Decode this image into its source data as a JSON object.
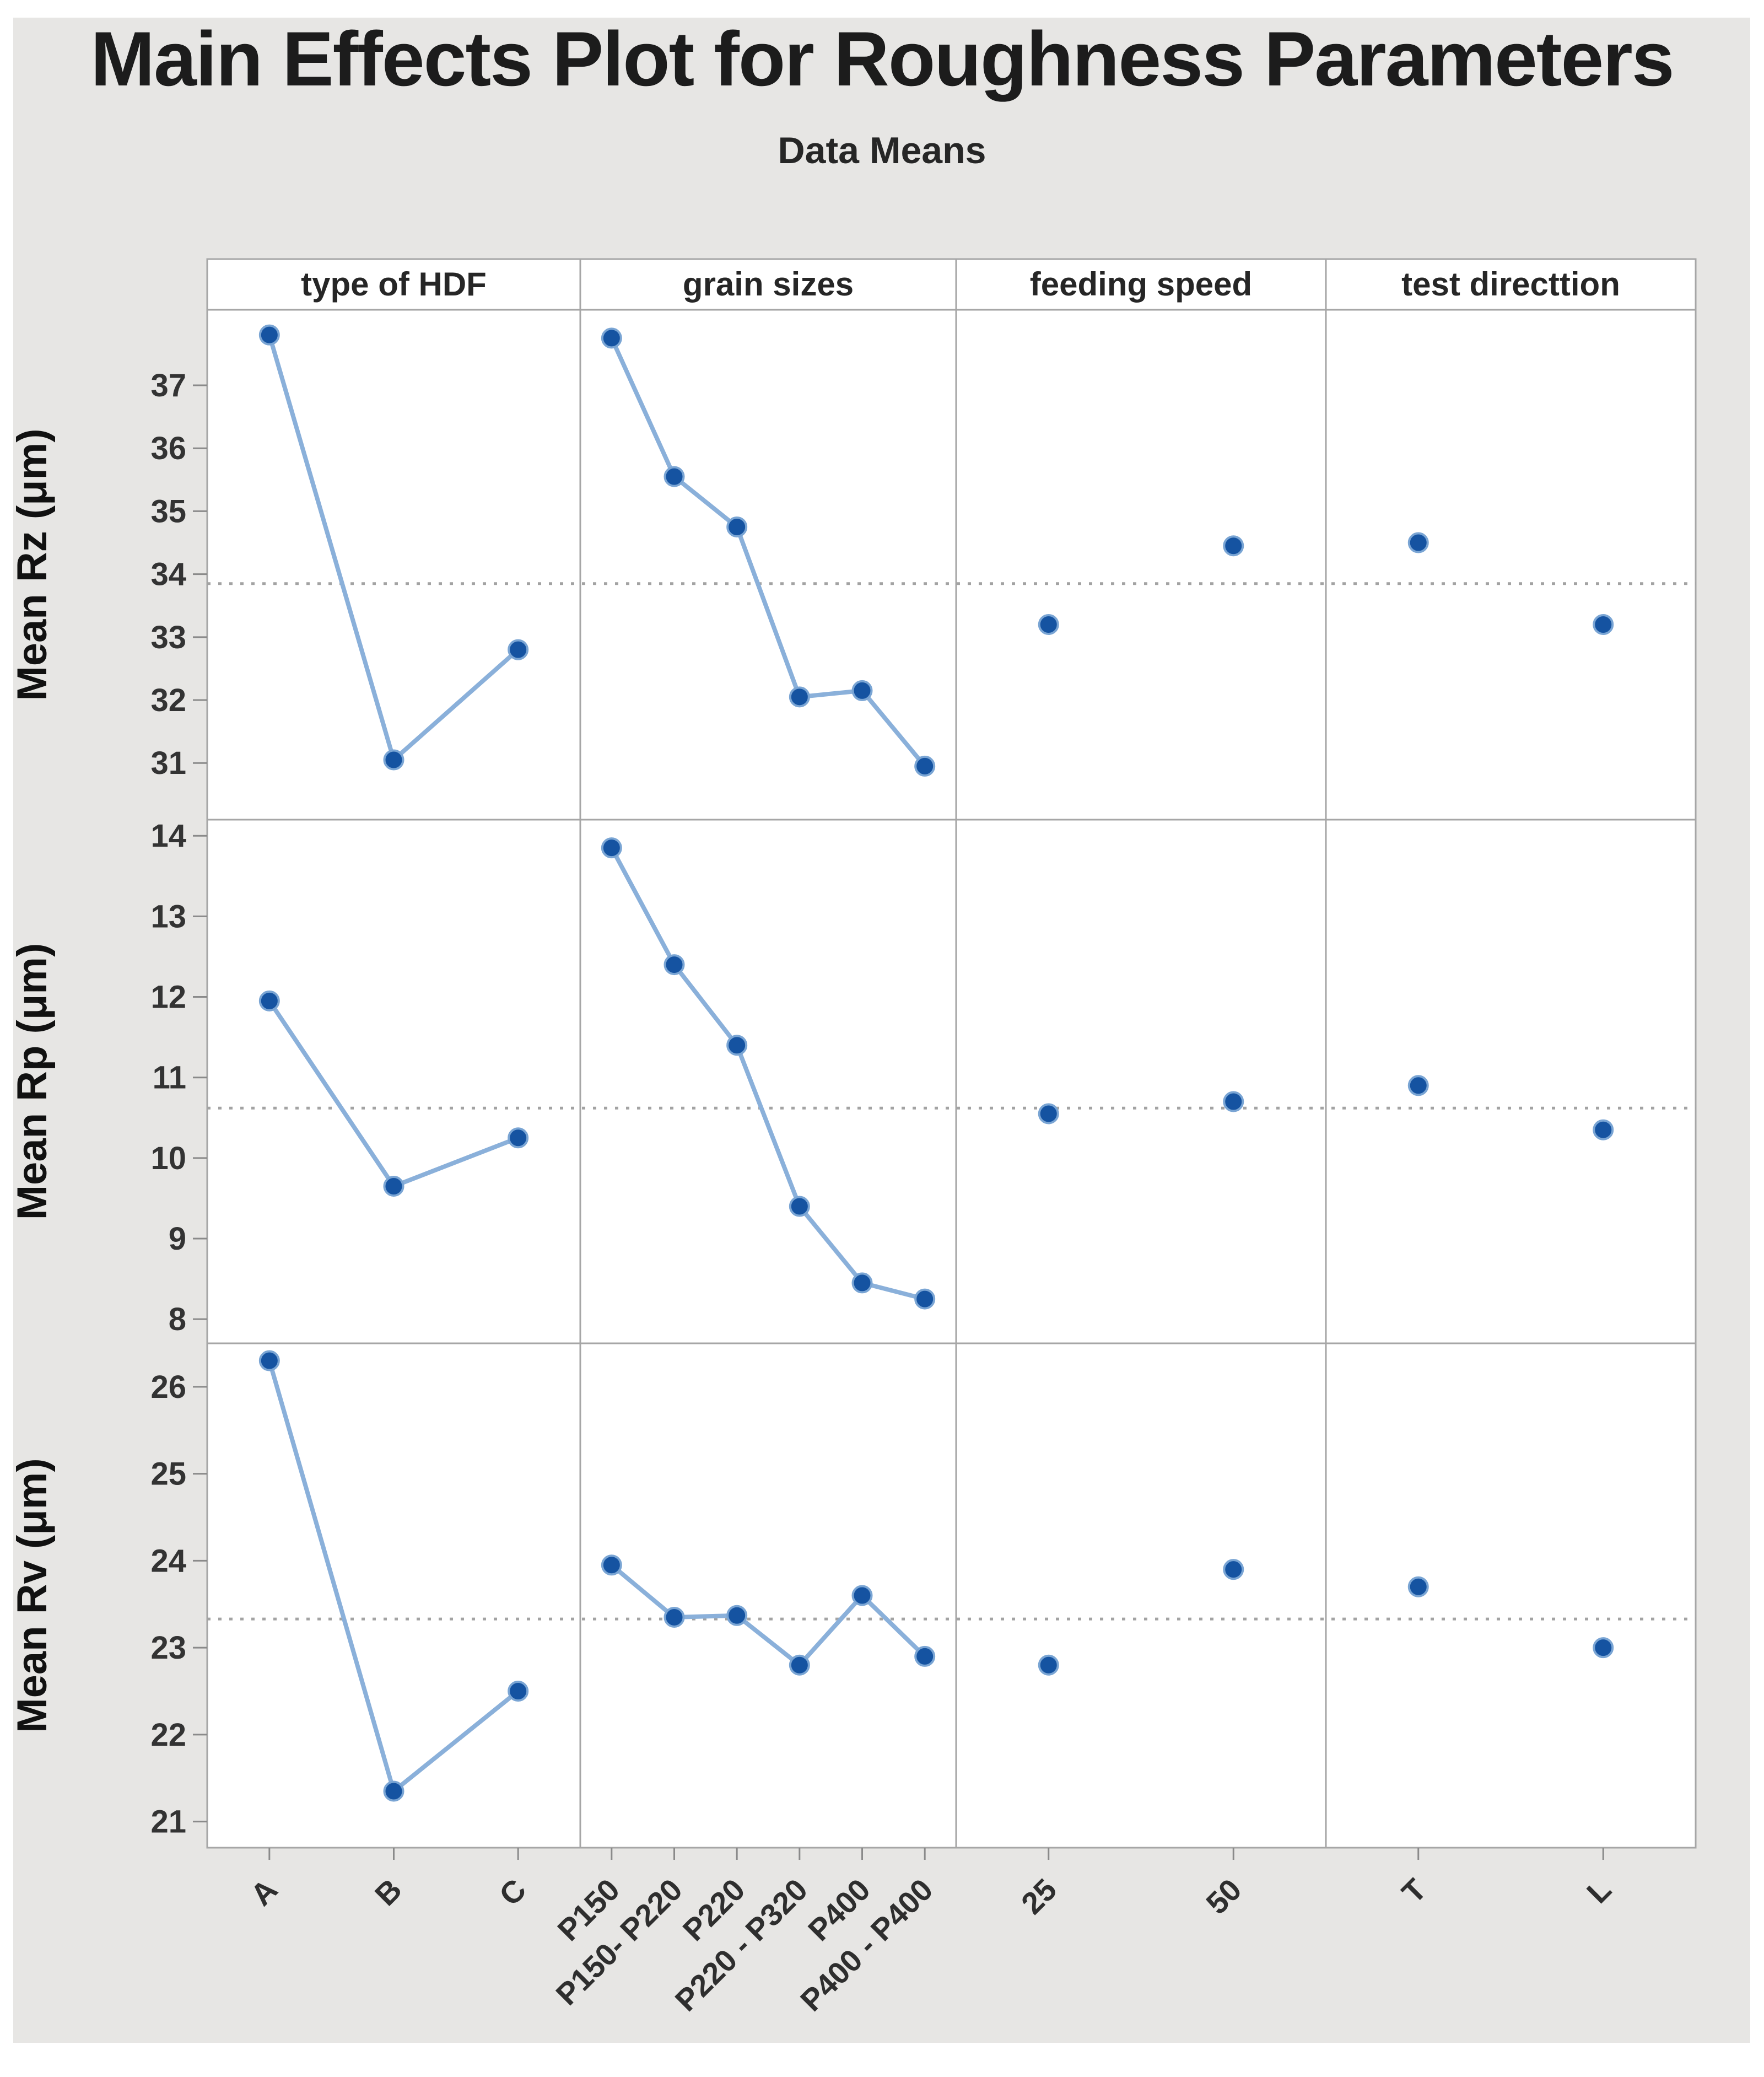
{
  "title": "Main Effects Plot for Roughness Parameters",
  "subtitle": "Data Means",
  "chart_data": {
    "type": "line",
    "variant": "main-effects-plot-grid",
    "grid": "off",
    "legend_position": "none",
    "reference_line_style": "dotted",
    "columns": [
      {
        "label": "type of HDF",
        "categories": [
          "A",
          "B",
          "C"
        ],
        "connected": true
      },
      {
        "label": "grain sizes",
        "categories": [
          "P150",
          "P150- P220",
          "P220",
          "P220 - P320",
          "P400",
          "P400 - P400"
        ],
        "connected": true
      },
      {
        "label": "feeding speed",
        "categories": [
          "25",
          "50"
        ],
        "connected": false
      },
      {
        "label": "test directtion",
        "categories": [
          "T",
          "L"
        ],
        "connected": false
      }
    ],
    "rows": [
      {
        "ylabel": "Mean Rz (μm)",
        "yticks": [
          31,
          32,
          33,
          34,
          35,
          36,
          37
        ],
        "ylim": [
          30.1,
          38.2
        ],
        "grand_mean": 33.85,
        "series": [
          {
            "column": "type of HDF",
            "values": [
              37.8,
              31.05,
              32.8
            ]
          },
          {
            "column": "grain sizes",
            "values": [
              37.75,
              35.55,
              34.75,
              32.05,
              32.15,
              30.95
            ]
          },
          {
            "column": "feeding speed",
            "values": [
              33.2,
              34.45
            ]
          },
          {
            "column": "test directtion",
            "values": [
              34.5,
              33.2
            ]
          }
        ]
      },
      {
        "ylabel": "Mean Rp (μm)",
        "yticks": [
          8,
          9,
          10,
          11,
          12,
          13,
          14
        ],
        "ylim": [
          7.7,
          14.2
        ],
        "grand_mean": 10.62,
        "series": [
          {
            "column": "type of HDF",
            "values": [
              11.95,
              9.65,
              10.25
            ]
          },
          {
            "column": "grain sizes",
            "values": [
              13.85,
              12.4,
              11.4,
              9.4,
              8.45,
              8.25
            ]
          },
          {
            "column": "feeding speed",
            "values": [
              10.55,
              10.7
            ]
          },
          {
            "column": "test directtion",
            "values": [
              10.9,
              10.35
            ]
          }
        ]
      },
      {
        "ylabel": "Mean Rv (μm)",
        "yticks": [
          21,
          22,
          23,
          24,
          25,
          26
        ],
        "ylim": [
          20.7,
          26.5
        ],
        "grand_mean": 23.33,
        "series": [
          {
            "column": "type of HDF",
            "values": [
              26.3,
              21.35,
              22.5
            ]
          },
          {
            "column": "grain sizes",
            "values": [
              23.95,
              23.35,
              23.37,
              22.8,
              23.6,
              22.9
            ]
          },
          {
            "column": "feeding speed",
            "values": [
              22.8,
              23.9
            ]
          },
          {
            "column": "test directtion",
            "values": [
              23.7,
              23.0
            ]
          }
        ]
      }
    ],
    "colors": {
      "marker": "#1553a1",
      "marker_edge": "#7aa5d4",
      "line": "#8ab0da",
      "reference_line": "#a3a3a3",
      "panel_border": "#a6a6a6",
      "tick": "#8a8a8a",
      "panel_bg": "#ffffff",
      "canvas_bg": "#e7e6e4",
      "text": "#262626",
      "title_text": "#1c1c1c",
      "tick_label_text": "#333333",
      "axis_title_text": "#111111"
    }
  }
}
